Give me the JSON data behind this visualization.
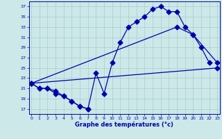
{
  "background": "#cce8e8",
  "grid_color": "#aacccc",
  "line_color": "#0000aa",
  "ylim": [
    16,
    38
  ],
  "xlim": [
    -0.3,
    23.3
  ],
  "ylabel_ticks": [
    17,
    19,
    21,
    23,
    25,
    27,
    29,
    31,
    33,
    35,
    37
  ],
  "xlabel": "Graphe des températures (°c)",
  "line_max": [
    22,
    21,
    21,
    20.5,
    19.5,
    18.5,
    17.5,
    17,
    24,
    20,
    26,
    30,
    33,
    34,
    35,
    36.5,
    37,
    36,
    36,
    33,
    31.5,
    29,
    26,
    null
  ],
  "line_min": [
    22,
    21,
    21,
    20,
    19.5,
    18.5,
    17.5,
    17,
    null,
    null,
    null,
    null,
    null,
    null,
    null,
    null,
    null,
    null,
    null,
    null,
    null,
    null,
    null,
    null
  ],
  "line_upper": [
    22,
    null,
    null,
    null,
    null,
    null,
    null,
    null,
    null,
    null,
    null,
    null,
    null,
    null,
    null,
    null,
    null,
    null,
    33,
    null,
    31.5,
    null,
    null,
    26
  ],
  "line_lower": [
    22,
    null,
    null,
    null,
    null,
    null,
    null,
    null,
    null,
    null,
    null,
    null,
    null,
    null,
    null,
    null,
    null,
    null,
    null,
    null,
    null,
    null,
    null,
    25
  ]
}
